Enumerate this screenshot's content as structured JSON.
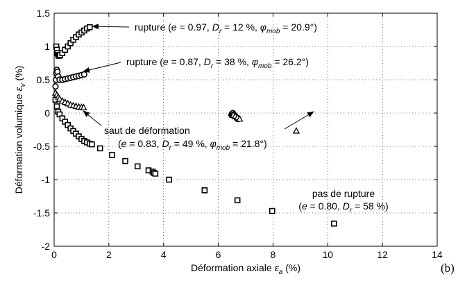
{
  "chart_data": {
    "type": "scatter",
    "xlabel": "Déformation axiale ε_a (%)",
    "ylabel": "Déformation volumique ε_v (%)",
    "xlim": [
      0,
      14
    ],
    "ylim": [
      -2,
      1.5
    ],
    "xticks": [
      "0",
      "2",
      "4",
      "6",
      "8",
      "10",
      "12",
      "14"
    ],
    "yticks": [
      "-2",
      "-1.5",
      "-1",
      "-0.5",
      "0",
      "0.5",
      "1",
      "1.5"
    ],
    "grid": true,
    "panel_label": "(b)",
    "series": [
      {
        "marker": "square",
        "points": [
          [
            0.08,
            1.0
          ],
          [
            0.1,
            0.95
          ],
          [
            0.12,
            0.9
          ],
          [
            0.15,
            0.87
          ],
          [
            0.18,
            0.86
          ],
          [
            0.22,
            0.87
          ],
          [
            0.3,
            0.9
          ],
          [
            0.4,
            0.95
          ],
          [
            0.5,
            1.0
          ],
          [
            0.6,
            1.05
          ],
          [
            0.7,
            1.1
          ],
          [
            0.8,
            1.14
          ],
          [
            0.9,
            1.18
          ],
          [
            1.0,
            1.21
          ],
          [
            1.1,
            1.24
          ],
          [
            1.2,
            1.27
          ],
          [
            1.3,
            1.29
          ],
          [
            0.05,
            0.2
          ],
          [
            0.1,
            0.1
          ],
          [
            0.15,
            0.02
          ],
          [
            0.2,
            -0.02
          ],
          [
            0.3,
            -0.08
          ],
          [
            0.4,
            -0.13
          ],
          [
            0.5,
            -0.18
          ],
          [
            0.6,
            -0.23
          ],
          [
            0.7,
            -0.27
          ],
          [
            0.8,
            -0.31
          ],
          [
            0.9,
            -0.35
          ],
          [
            1.0,
            -0.39
          ],
          [
            1.1,
            -0.42
          ],
          [
            1.2,
            -0.44
          ],
          [
            1.3,
            -0.46
          ],
          [
            1.38,
            -0.47
          ],
          [
            1.68,
            -0.53
          ],
          [
            2.12,
            -0.63
          ],
          [
            2.6,
            -0.72
          ],
          [
            3.05,
            -0.8
          ],
          [
            3.45,
            -0.86
          ],
          [
            3.6,
            -0.88
          ],
          [
            3.65,
            -0.9
          ],
          [
            3.7,
            -0.91
          ],
          [
            4.2,
            -1.0
          ],
          [
            5.5,
            -1.16
          ],
          [
            6.7,
            -1.31
          ],
          [
            7.97,
            -1.47
          ],
          [
            10.23,
            -1.66
          ]
        ]
      },
      {
        "marker": "circle",
        "points": [
          [
            0.05,
            0.4
          ],
          [
            0.07,
            0.5
          ],
          [
            0.08,
            0.6
          ],
          [
            0.1,
            0.65
          ],
          [
            0.12,
            0.62
          ],
          [
            0.15,
            0.55
          ],
          [
            0.2,
            0.5
          ],
          [
            0.3,
            0.5
          ],
          [
            0.4,
            0.51
          ],
          [
            0.5,
            0.52
          ],
          [
            0.6,
            0.53
          ],
          [
            0.7,
            0.54
          ],
          [
            0.8,
            0.55
          ],
          [
            0.9,
            0.56
          ],
          [
            1.0,
            0.57
          ],
          [
            1.1,
            0.58
          ],
          [
            6.48,
            -0.03
          ],
          [
            6.5,
            -0.01
          ],
          [
            6.53,
            0.0
          ],
          [
            6.56,
            -0.02
          ],
          [
            6.6,
            -0.04
          ],
          [
            6.64,
            -0.06
          ],
          [
            6.68,
            -0.08
          ],
          [
            6.72,
            -0.09
          ]
        ]
      },
      {
        "marker": "triangle",
        "points": [
          [
            0.05,
            0.3
          ],
          [
            0.1,
            0.27
          ],
          [
            0.15,
            0.24
          ],
          [
            0.2,
            0.21
          ],
          [
            0.3,
            0.18
          ],
          [
            0.4,
            0.16
          ],
          [
            0.5,
            0.14
          ],
          [
            0.6,
            0.12
          ],
          [
            0.7,
            0.11
          ],
          [
            0.8,
            0.1
          ],
          [
            0.9,
            0.09
          ],
          [
            1.0,
            0.085
          ],
          [
            1.08,
            0.08
          ],
          [
            6.55,
            -0.03
          ],
          [
            6.62,
            -0.05
          ],
          [
            6.7,
            -0.07
          ],
          [
            6.78,
            -0.09
          ],
          [
            8.85,
            -0.27
          ]
        ]
      }
    ],
    "annotations": [
      {
        "id": "a1",
        "text": "rupture (e = 0.97, D_r = 12 %, φ_mob = 20.9°)",
        "arrow_to": [
          1.35,
          1.29
        ]
      },
      {
        "id": "a2",
        "text": "rupture (e = 0.87, D_r = 38 %, φ_mob = 26.2°)",
        "arrow_to": [
          1.12,
          0.58
        ]
      },
      {
        "id": "a3",
        "text": "saut de déformation",
        "arrow_to": [
          1.0,
          0.1
        ]
      },
      {
        "id": "a4",
        "text": "(e = 0.83, D_r = 49 %, φ_mob = 21.8°)"
      },
      {
        "id": "a5",
        "text": "pas de rupture"
      },
      {
        "id": "a6",
        "text": "(e = 0.80, D_r = 58 %)"
      }
    ]
  }
}
